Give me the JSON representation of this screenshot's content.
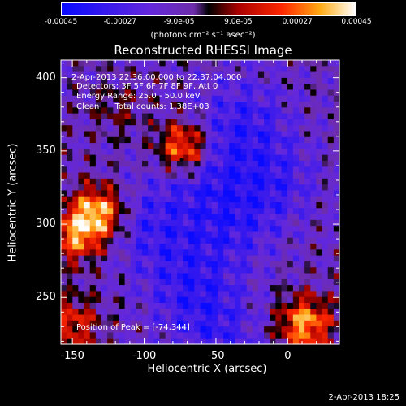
{
  "colorbar": {
    "ticks": [
      "-0.00045",
      "-0.00027",
      "-9.0e-05",
      "9.0e-05",
      "0.00027",
      "0.00045"
    ],
    "tick_values": [
      -0.00045,
      -0.00027,
      -9e-05,
      9e-05,
      0.00027,
      0.00045
    ],
    "range": [
      -0.00045,
      0.00045
    ],
    "unit": "(photons cm⁻² s⁻¹ asec⁻²)"
  },
  "chart_data": {
    "type": "heatmap",
    "title": "Reconstructed RHESSI Image",
    "xlabel": "Heliocentric X (arcsec)",
    "ylabel": "Heliocentric Y (arcsec)",
    "xlim": [
      -158,
      36
    ],
    "ylim": [
      218,
      412
    ],
    "xticks": [
      -150,
      -100,
      -50,
      0
    ],
    "yticks": [
      250,
      300,
      350,
      400
    ],
    "peak": [
      -74,
      344
    ],
    "sources": [
      {
        "x": -72,
        "y": 352,
        "level": 0.00045
      },
      {
        "x": -132,
        "y": 308,
        "level": 0.00042
      },
      {
        "x": -148,
        "y": 292,
        "level": 0.00032
      },
      {
        "x": 12,
        "y": 232,
        "level": 0.0004
      },
      {
        "x": -150,
        "y": 232,
        "level": 0.00025
      },
      {
        "x": -118,
        "y": 378,
        "level": 0.0001
      }
    ],
    "negative_band": [
      {
        "x": -30,
        "y": 372
      },
      {
        "x": -60,
        "y": 340
      },
      {
        "x": -95,
        "y": 300
      },
      {
        "x": -10,
        "y": 330
      },
      {
        "x": -40,
        "y": 300
      },
      {
        "x": -70,
        "y": 260
      },
      {
        "x": -50,
        "y": 228
      }
    ]
  },
  "annotations": {
    "time": "2-Apr-2013 22:36:00.000 to 22:37:04.000",
    "detectors": "Detectors: 3F 5F 6F 7F 8F 9F, Att 0",
    "energy": "Energy Range: 25.0 - 50.0 keV",
    "clean": "Clean      Total counts: 1.38E+03",
    "peak_label": "Position of Peak = [-74,344]"
  },
  "datestamp": "2-Apr-2013 18:25"
}
